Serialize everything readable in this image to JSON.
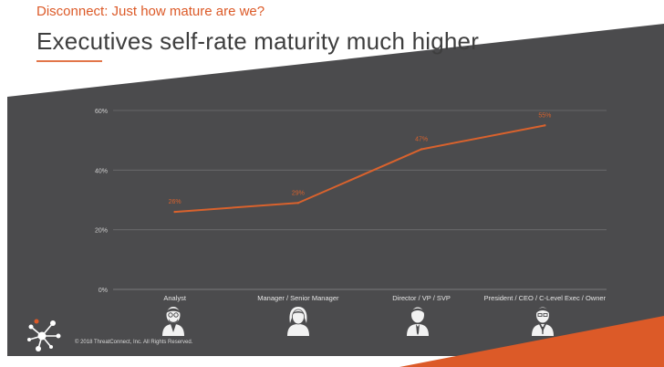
{
  "header": {
    "subtitle": "Disconnect: Just how mature are we?",
    "title": "Executives self-rate maturity much higher"
  },
  "footer": {
    "copyright": "© 2018 ThreatConnect, Inc. All Rights Reserved."
  },
  "colors": {
    "accent": "#dc5a28",
    "panel": "#4b4b4d",
    "line": "#d9622d",
    "gridline": "#6e6e70",
    "tick_text": "#cfcfcf"
  },
  "icons": [
    "analyst-icon",
    "manager-icon",
    "director-icon",
    "president-icon",
    "threatconnect-logo"
  ],
  "chart_data": {
    "type": "line",
    "categories": [
      "Analyst",
      "Manager / Senior Manager",
      "Director / VP / SVP",
      "President / CEO / C-Level Exec / Owner"
    ],
    "series": [
      {
        "values": [
          26,
          29,
          47,
          55
        ],
        "labels": [
          "26%",
          "29%",
          "47%",
          "55%"
        ]
      }
    ],
    "yticks": [
      "0%",
      "20%",
      "40%",
      "60%"
    ],
    "ylim": [
      0,
      60
    ],
    "grid": true,
    "legend": "none"
  }
}
